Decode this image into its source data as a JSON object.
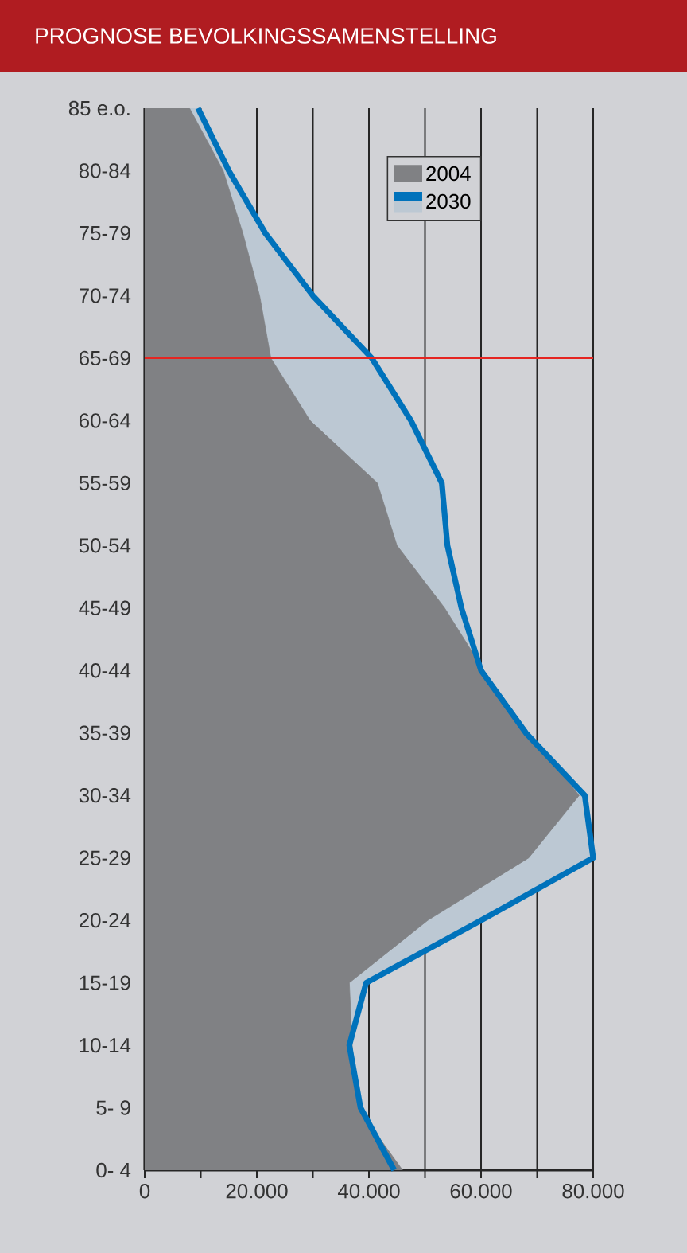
{
  "chart_data": {
    "type": "area",
    "title": "PROGNOSE BEVOLKINGSSAMENSTELLING",
    "orientation": "horizontal",
    "categories": [
      "85 e.o.",
      "80-84",
      "75-79",
      "70-74",
      "65-69",
      "60-64",
      "55-59",
      "50-54",
      "45-49",
      "40-44",
      "35-39",
      "30-34",
      "25-29",
      "20-24",
      "15-19",
      "10-14",
      "5- 9",
      "0- 4"
    ],
    "series": [
      {
        "name": "2004",
        "color": "#808184",
        "values": [
          8000,
          14000,
          17500,
          20500,
          22500,
          29500,
          41500,
          45000,
          53500,
          60500,
          68500,
          77500,
          68500,
          50500,
          36500,
          37000,
          38000,
          46000
        ]
      },
      {
        "name": "2030",
        "color": "#0072bb",
        "values": [
          9500,
          15000,
          21500,
          30000,
          40500,
          47500,
          53000,
          54000,
          56500,
          60000,
          68000,
          78500,
          80000,
          60000,
          39500,
          36500,
          38500,
          44500
        ]
      }
    ],
    "xlim": [
      0,
      80000
    ],
    "xticks": [
      0,
      {
        "value": 10000,
        "label": null
      },
      {
        "value": 20000,
        "label": "20.000"
      },
      {
        "value": 30000,
        "label": null
      },
      {
        "value": 40000,
        "label": "40.000"
      },
      {
        "value": 50000,
        "label": null
      },
      {
        "value": 60000,
        "label": "60.000"
      },
      {
        "value": 70000,
        "label": null
      },
      {
        "value": 80000,
        "label": "80.000"
      }
    ],
    "grid": "x",
    "legend": "top right",
    "ref_lines": [
      {
        "axis": "y",
        "value": "65-69",
        "color": "#e52521"
      }
    ]
  }
}
